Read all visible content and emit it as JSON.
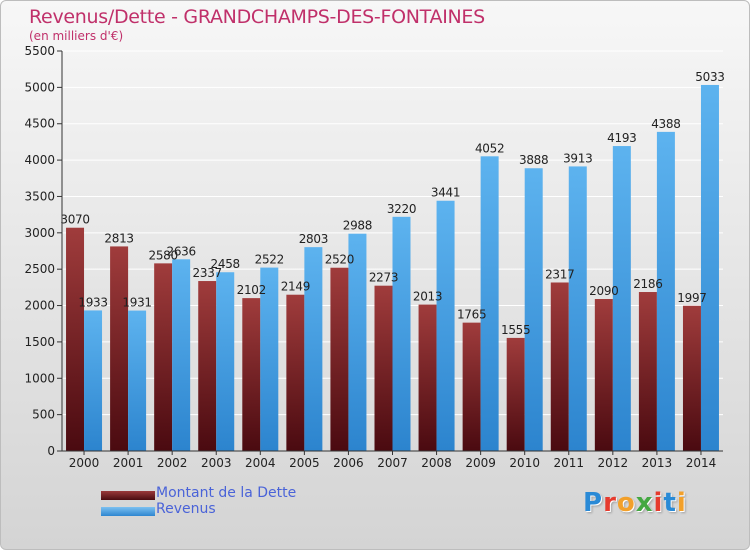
{
  "title": "Revenus/Dette - GRANDCHAMPS-DES-FONTAINES",
  "subtitle": "(en milliers d'€)",
  "logo": {
    "text": "Proxiti",
    "colors": [
      "#2a8ad6",
      "#e63b2e",
      "#f2a02a",
      "#44a842",
      "#e63b2e",
      "#2a8ad6",
      "#f2a02a"
    ]
  },
  "colors": {
    "dette": "#7a1f24",
    "revenus": "#4da6e8",
    "title": "#c0306a",
    "legend_text": "#4a63d8"
  },
  "legend": [
    {
      "label": "Montant de la Dette",
      "color": "#6b1a1f"
    },
    {
      "label": "Revenus",
      "color": "#3f9be0"
    }
  ],
  "chart_data": {
    "type": "bar",
    "title": "Revenus/Dette - GRANDCHAMPS-DES-FONTAINES",
    "subtitle": "(en milliers d'€)",
    "categories": [
      "2000",
      "2001",
      "2002",
      "2003",
      "2004",
      "2005",
      "2006",
      "2007",
      "2008",
      "2009",
      "2010",
      "2011",
      "2012",
      "2013",
      "2014"
    ],
    "series": [
      {
        "name": "Montant de la Dette",
        "values": [
          3070,
          2813,
          2580,
          2337,
          2102,
          2149,
          2520,
          2273,
          2013,
          1765,
          1555,
          2317,
          2090,
          2186,
          1997
        ],
        "labels": [
          "3070",
          "2813",
          "2580",
          "2337",
          "2102",
          "2149",
          "2520",
          "2273",
          "2013",
          "1765",
          "1555",
          "2317",
          "2090",
          "2186",
          "1997"
        ]
      },
      {
        "name": "Revenus",
        "values": [
          1933,
          1931,
          2636,
          2458,
          2522,
          2803,
          2988,
          3220,
          3441,
          4052,
          3888,
          3913,
          4193,
          4388,
          5033
        ],
        "labels": [
          "1933",
          "1931",
          "2636",
          "2458",
          "2522",
          "2803",
          "2988",
          "3220",
          "3441",
          "4052",
          "3888",
          "3913",
          "4193",
          "4388",
          "5033"
        ]
      }
    ],
    "ylim": [
      0,
      5500
    ],
    "yticks": [
      0,
      500,
      1000,
      1500,
      2000,
      2500,
      3000,
      3500,
      4000,
      4500,
      5000,
      5500
    ],
    "grid": true,
    "legend_position": "bottom-left"
  }
}
